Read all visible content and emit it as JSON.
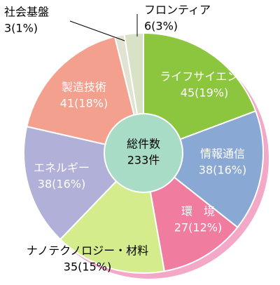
{
  "chart_data": {
    "type": "pie",
    "categories": [
      "ライフサイエンス",
      "情報通信",
      "環　境",
      "ナノテクノロジー・材料",
      "エネルギー",
      "製造技術",
      "社会基盤",
      "フロンティア"
    ],
    "values": [
      45,
      38,
      27,
      35,
      38,
      41,
      3,
      6
    ],
    "value_labels": [
      "45(19%)",
      "38(16%)",
      "27(12%)",
      "35(15%)",
      "38(16%)",
      "41(18%)",
      "3(1%)",
      "6(3%)"
    ],
    "colors": [
      "#8cc63f",
      "#8aa8d4",
      "#f07ca0",
      "#d4ec8c",
      "#b0b0d8",
      "#f4a08e",
      "#e2e2d2",
      "#d8e2c6"
    ],
    "center_text": [
      "総件数",
      "233件"
    ]
  }
}
